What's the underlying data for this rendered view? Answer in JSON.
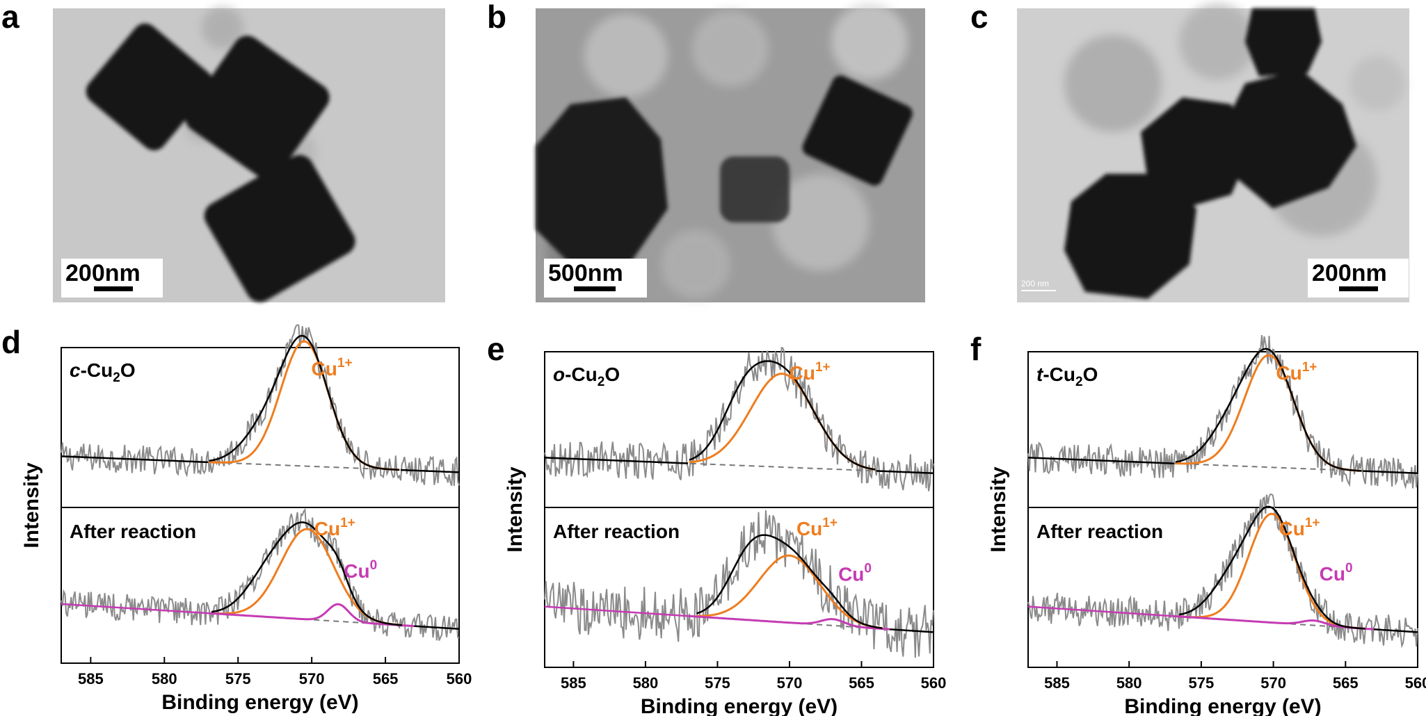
{
  "panel_labels": [
    "a",
    "b",
    "c",
    "d",
    "e",
    "f"
  ],
  "tem_images": [
    {
      "panel": "a",
      "scale_bar": "200nm"
    },
    {
      "panel": "b",
      "scale_bar": "500nm"
    },
    {
      "panel": "c",
      "scale_bar": "200nm",
      "inner_scale_bar": "200 nm"
    }
  ],
  "colors": {
    "raw": "#8a8a8a",
    "envelope": "#000000",
    "cu1": "#ee7d1f",
    "cu0": "#c53bb3",
    "background": "#8c8c8c"
  },
  "chart_data": [
    {
      "panel": "d",
      "type": "line",
      "xlabel": "Binding energy (eV)",
      "ylabel": "Intensity",
      "xlim": [
        587,
        560
      ],
      "x_ticks": [
        585,
        580,
        575,
        570,
        565,
        560
      ],
      "y_ticks": [],
      "subplots": [
        {
          "sample": "c-Cu",
          "sample_sub": "2",
          "sample_tail": "O",
          "peaks": [
            {
              "label": "Cu",
              "sup": "1+",
              "center": 570.5,
              "width": 1.6,
              "height": 0.78
            }
          ]
        },
        {
          "sample": "After reaction",
          "sample_sub": "",
          "sample_tail": "",
          "peaks": [
            {
              "label": "Cu",
              "sup": "1+",
              "center": 570.3,
              "width": 1.8,
              "height": 0.58
            },
            {
              "label": "Cu",
              "sup": "0",
              "center": 568.2,
              "width": 0.7,
              "height": 0.11
            }
          ]
        }
      ]
    },
    {
      "panel": "e",
      "type": "line",
      "xlabel": "Binding energy (eV)",
      "ylabel": "Intensity",
      "xlim": [
        587,
        560
      ],
      "x_ticks": [
        585,
        580,
        575,
        570,
        565,
        560
      ],
      "y_ticks": [],
      "subplots": [
        {
          "sample": "o-Cu",
          "sample_sub": "2",
          "sample_tail": "O",
          "peaks": [
            {
              "label": "Cu",
              "sup": "1+",
              "center": 570.5,
              "width": 2.2,
              "height": 0.6
            }
          ]
        },
        {
          "sample": "After reaction",
          "sample_sub": "",
          "sample_tail": "",
          "peaks": [
            {
              "label": "Cu",
              "sup": "1+",
              "center": 570.0,
              "width": 2.1,
              "height": 0.42
            },
            {
              "label": "Cu",
              "sup": "0",
              "center": 567.0,
              "width": 0.8,
              "height": 0.04
            }
          ]
        }
      ]
    },
    {
      "panel": "f",
      "type": "line",
      "xlabel": "Binding energy (eV)",
      "ylabel": "Intensity",
      "xlim": [
        587,
        560
      ],
      "x_ticks": [
        585,
        580,
        575,
        570,
        565,
        560
      ],
      "y_ticks": [],
      "subplots": [
        {
          "sample": "t-Cu",
          "sample_sub": "2",
          "sample_tail": "O",
          "peaks": [
            {
              "label": "Cu",
              "sup": "1+",
              "center": 570.3,
              "width": 1.7,
              "height": 0.72
            }
          ]
        },
        {
          "sample": "After reaction",
          "sample_sub": "",
          "sample_tail": "",
          "peaks": [
            {
              "label": "Cu",
              "sup": "1+",
              "center": 570.1,
              "width": 1.6,
              "height": 0.68
            },
            {
              "label": "Cu",
              "sup": "0",
              "center": 567.2,
              "width": 0.8,
              "height": 0.03
            }
          ]
        }
      ]
    }
  ]
}
